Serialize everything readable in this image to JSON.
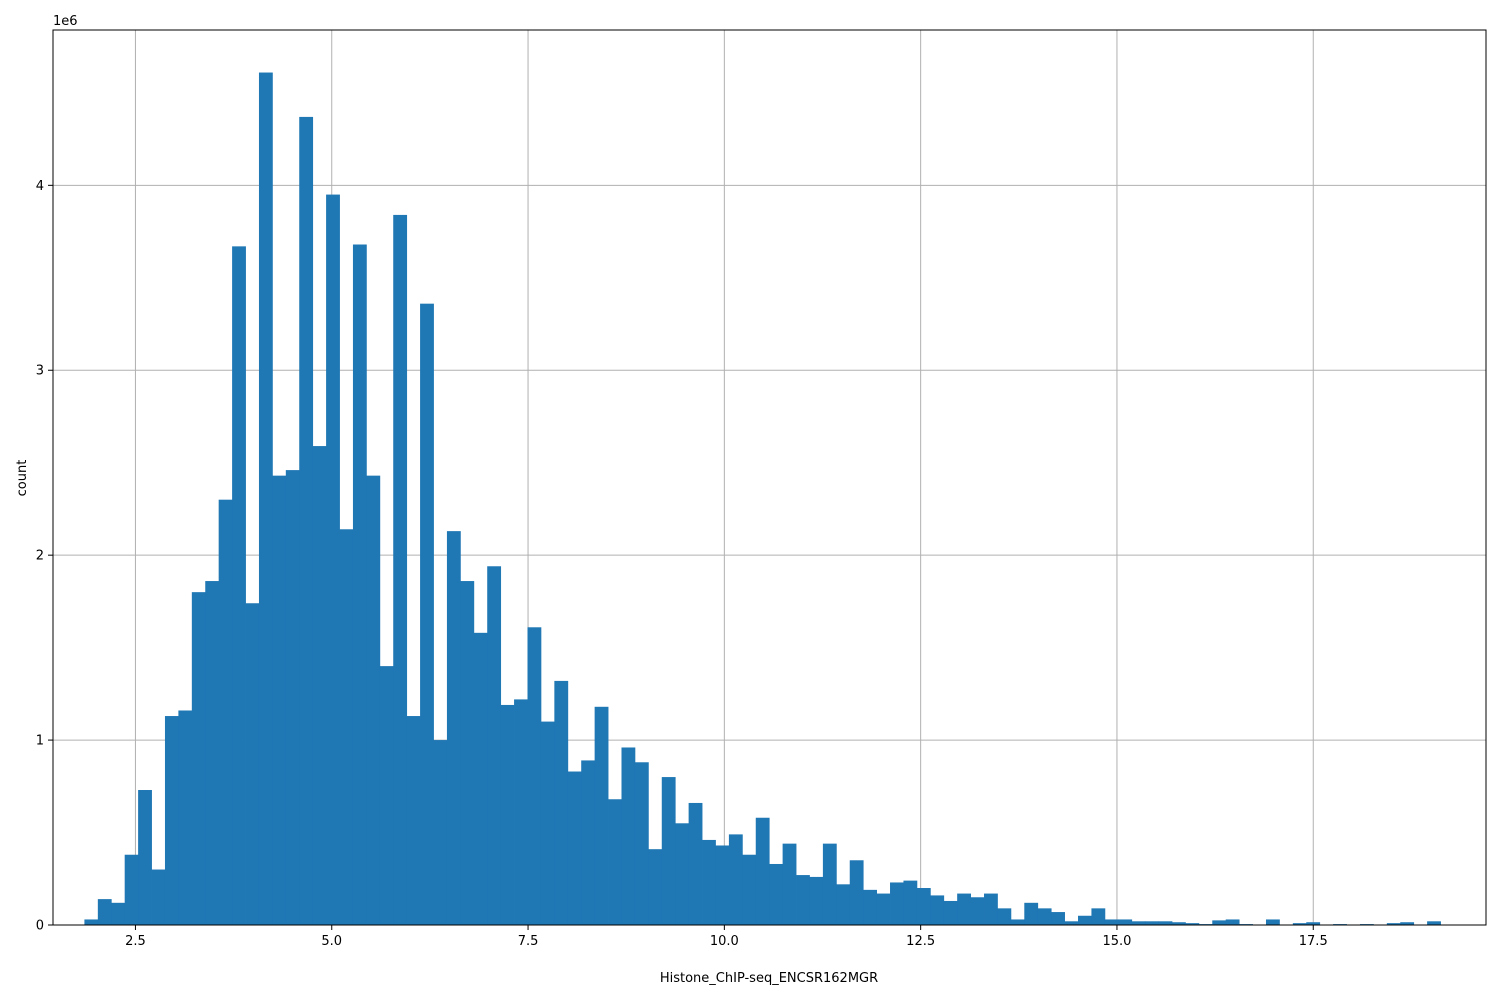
{
  "chart_data": {
    "type": "bar",
    "histogram": true,
    "xlabel": "Histone_ChIP-seq_ENCSR162MGR",
    "ylabel": "count",
    "y_offset_label": "1e6",
    "xlim": [
      1.45,
      19.7
    ],
    "ylim": [
      0,
      4.84
    ],
    "grid": true,
    "bar_color": "#1f77b4",
    "xticks": [
      2.5,
      5.0,
      7.5,
      10.0,
      12.5,
      15.0,
      17.5
    ],
    "xtick_labels": [
      "2.5",
      "5.0",
      "7.5",
      "10.0",
      "12.5",
      "15.0",
      "17.5"
    ],
    "yticks": [
      0,
      1,
      2,
      3,
      4
    ],
    "ytick_labels": [
      "0",
      "1",
      "2",
      "3",
      "4"
    ],
    "bin_start": 1.85,
    "bin_width": 0.171,
    "values": [
      0.03,
      0.14,
      0.12,
      0.38,
      0.73,
      0.3,
      1.13,
      1.16,
      1.8,
      1.86,
      2.3,
      3.67,
      1.74,
      4.61,
      2.43,
      2.46,
      4.37,
      2.59,
      3.95,
      2.14,
      3.68,
      2.43,
      1.4,
      3.84,
      1.13,
      3.36,
      1.0,
      2.13,
      1.86,
      1.58,
      1.94,
      1.19,
      1.22,
      1.61,
      1.1,
      1.32,
      0.83,
      0.89,
      1.18,
      0.68,
      0.96,
      0.88,
      0.41,
      0.8,
      0.55,
      0.66,
      0.46,
      0.43,
      0.49,
      0.38,
      0.58,
      0.33,
      0.44,
      0.27,
      0.26,
      0.44,
      0.22,
      0.35,
      0.19,
      0.17,
      0.23,
      0.24,
      0.2,
      0.16,
      0.13,
      0.17,
      0.15,
      0.17,
      0.09,
      0.03,
      0.12,
      0.09,
      0.07,
      0.02,
      0.05,
      0.09,
      0.03,
      0.03,
      0.02,
      0.02,
      0.02,
      0.015,
      0.01,
      0.005,
      0.025,
      0.03,
      0.005,
      0.0,
      0.03,
      0.0,
      0.01,
      0.015,
      0.0,
      0.005,
      0.0,
      0.005,
      0.0,
      0.01,
      0.015,
      0.0,
      0.02
    ]
  }
}
